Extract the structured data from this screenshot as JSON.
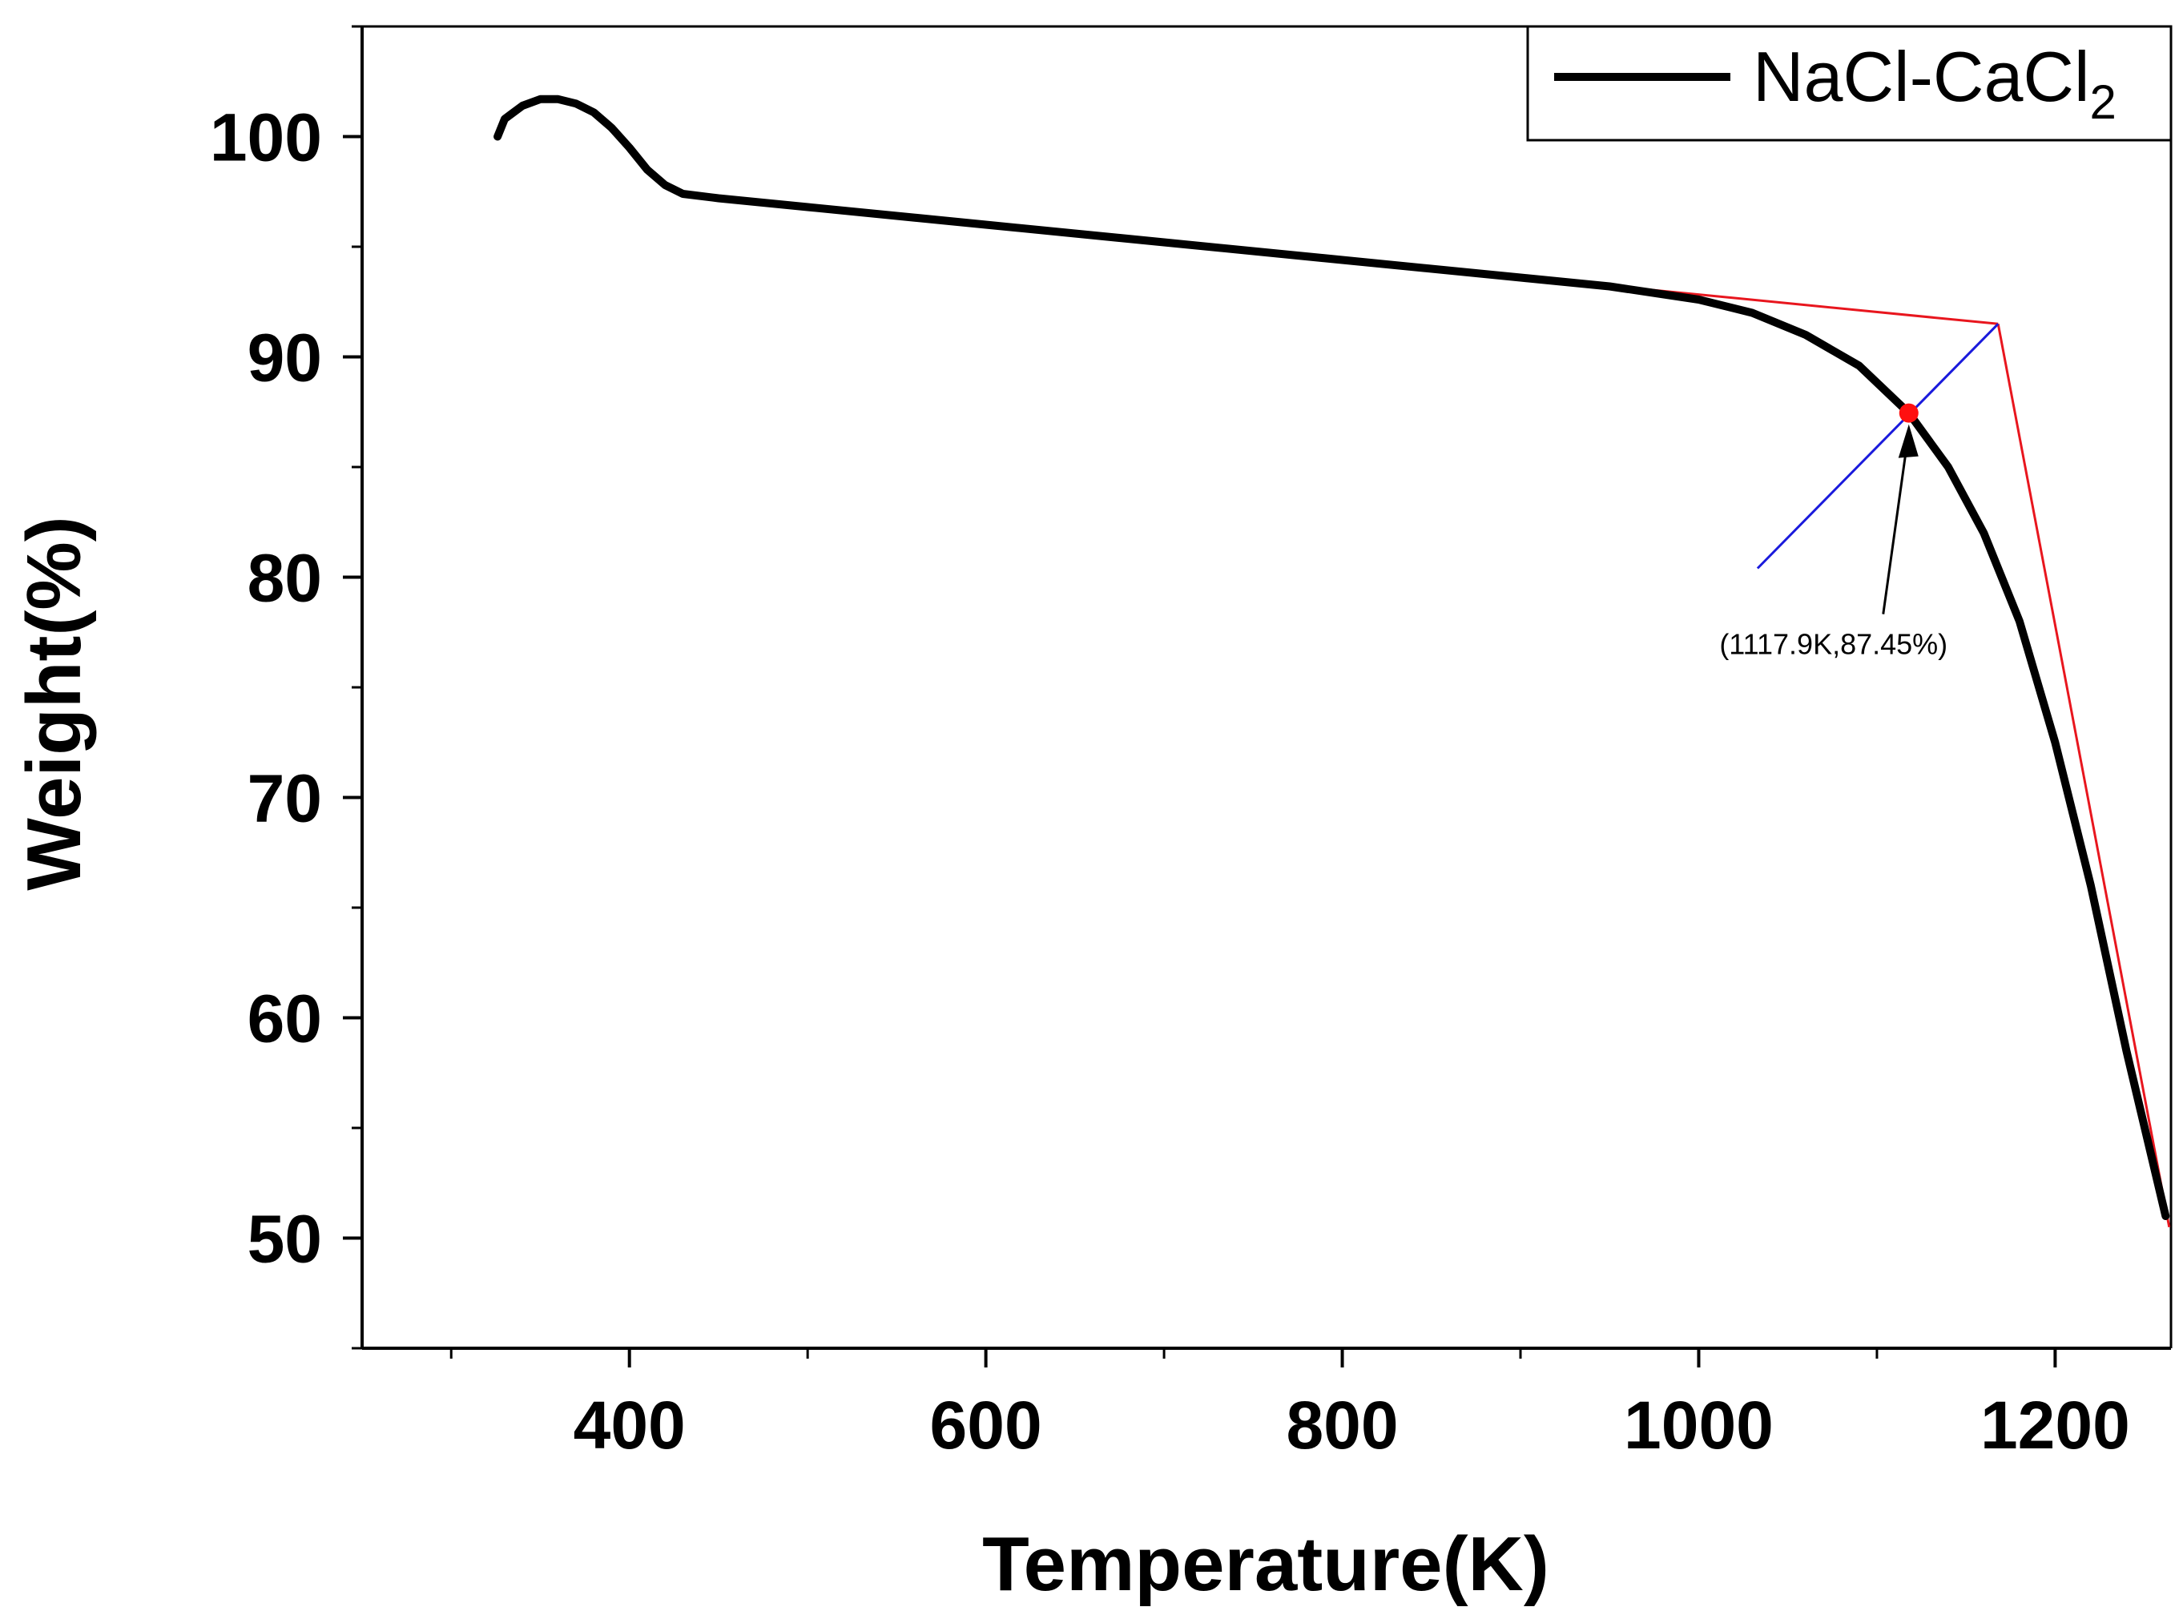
{
  "chart_data": {
    "type": "line",
    "title": "",
    "xlabel": "Temperature(K)",
    "ylabel": "Weight(%)",
    "xlim": [
      250,
      1265
    ],
    "ylim": [
      45,
      105
    ],
    "x_ticks": [
      400,
      600,
      800,
      1000,
      1200
    ],
    "x_tick_labels": [
      "400",
      "600",
      "800",
      "1000",
      "1200"
    ],
    "y_ticks": [
      50,
      60,
      70,
      80,
      90,
      100
    ],
    "y_tick_labels": [
      "50",
      "60",
      "70",
      "80",
      "90",
      "100"
    ],
    "x_minor_step": 100,
    "y_minor_step": 5,
    "grid": false,
    "legend": {
      "position": "top-right",
      "entries": [
        {
          "label": "NaCl-CaCl",
          "subscript": "2",
          "color": "#000000"
        }
      ]
    },
    "series": [
      {
        "name": "NaCl-CaCl2",
        "color": "#000000",
        "points": [
          [
            326,
            100.0
          ],
          [
            330,
            100.8
          ],
          [
            340,
            101.4
          ],
          [
            350,
            101.7
          ],
          [
            360,
            101.7
          ],
          [
            370,
            101.5
          ],
          [
            380,
            101.1
          ],
          [
            390,
            100.4
          ],
          [
            400,
            99.5
          ],
          [
            410,
            98.5
          ],
          [
            420,
            97.8
          ],
          [
            430,
            97.4
          ],
          [
            450,
            97.2
          ],
          [
            500,
            96.8
          ],
          [
            600,
            96.0
          ],
          [
            700,
            95.2
          ],
          [
            800,
            94.4
          ],
          [
            900,
            93.6
          ],
          [
            950,
            93.2
          ],
          [
            1000,
            92.6
          ],
          [
            1030,
            92.0
          ],
          [
            1060,
            91.0
          ],
          [
            1090,
            89.6
          ],
          [
            1117.9,
            87.45
          ],
          [
            1140,
            85.0
          ],
          [
            1160,
            82.0
          ],
          [
            1180,
            78.0
          ],
          [
            1200,
            72.5
          ],
          [
            1220,
            66.0
          ],
          [
            1240,
            58.5
          ],
          [
            1262,
            51.0
          ]
        ]
      }
    ],
    "tangent_lines": [
      {
        "name": "baseline-tangent",
        "color": "#e8161e",
        "points": [
          [
            500,
            96.8
          ],
          [
            1168,
            91.5
          ]
        ]
      },
      {
        "name": "steep-tangent",
        "color": "#e8161e",
        "points": [
          [
            1168,
            91.5
          ],
          [
            1264,
            50.5
          ]
        ]
      },
      {
        "name": "bisector-line",
        "color": "#1a1adc",
        "points": [
          [
            1033,
            80.4
          ],
          [
            1168,
            91.5
          ]
        ]
      }
    ],
    "onset_point": {
      "x": 1117.9,
      "y": 87.45,
      "color": "#ff1010"
    },
    "annotations": [
      {
        "text": "(1117.9K,87.45%)",
        "x": 1117.9,
        "y": 87.45
      }
    ]
  }
}
